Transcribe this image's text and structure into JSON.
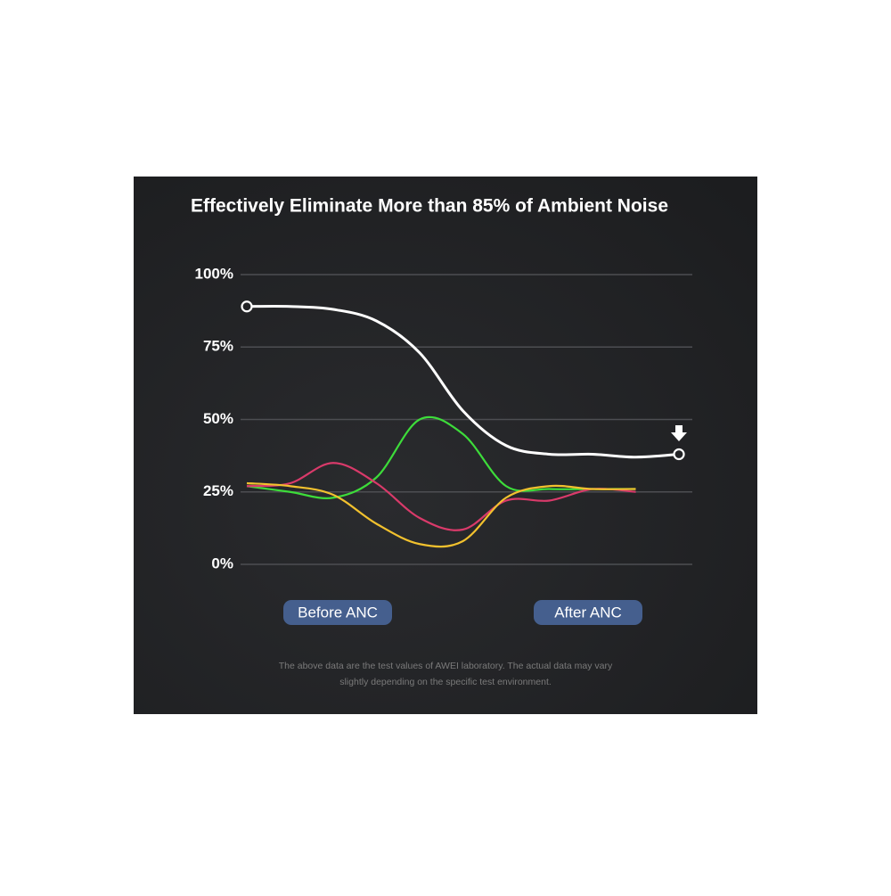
{
  "chart_data": {
    "type": "line",
    "title": "Effectively Eliminate More than 85% of Ambient Noise",
    "categories": [
      null,
      null,
      null,
      null,
      null,
      null,
      null,
      null,
      null,
      null,
      null
    ],
    "series": [
      {
        "color": "#3ddc3a",
        "values": [
          27,
          25,
          23,
          30,
          50,
          45,
          27,
          26,
          26,
          26,
          null
        ]
      },
      {
        "color": "#d93a6a",
        "values": [
          27,
          28,
          35,
          28,
          16,
          12,
          22,
          22,
          26,
          25,
          null
        ]
      },
      {
        "color": "#f2c12e",
        "values": [
          28,
          27,
          24,
          14,
          7,
          8,
          23,
          27,
          26,
          26,
          null
        ]
      },
      {
        "color": "#ffffff",
        "values": [
          89,
          89,
          88,
          84,
          73,
          53,
          41,
          38,
          38,
          37,
          38
        ],
        "end_markers": true
      }
    ],
    "ylim": [
      0,
      100
    ],
    "yticks": [
      {
        "value": 0,
        "label": "0%"
      },
      {
        "value": 25,
        "label": "25%"
      },
      {
        "value": 50,
        "label": "50%"
      },
      {
        "value": 75,
        "label": "75%"
      },
      {
        "value": 100,
        "label": "100%"
      }
    ],
    "grid": true,
    "annotations": [
      "Before ANC",
      "After ANC"
    ],
    "footnote": [
      "The above data are the test values of AWEI laboratory. The actual data may vary",
      "slightly depending on the specific test environment."
    ]
  }
}
